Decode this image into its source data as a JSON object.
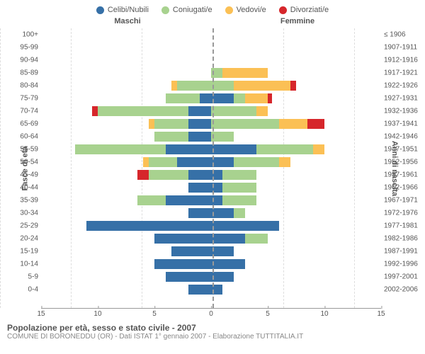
{
  "legend": [
    {
      "label": "Celibi/Nubili",
      "color": "#3670a7"
    },
    {
      "label": "Coniugati/e",
      "color": "#a8d28f"
    },
    {
      "label": "Vedovi/e",
      "color": "#fbc055"
    },
    {
      "label": "Divorziati/e",
      "color": "#d6262b"
    }
  ],
  "headers": {
    "left": "Maschi",
    "right": "Femmine"
  },
  "y_left_title": "Fasce di età",
  "y_right_title": "Anni di nascita",
  "x_max": 15,
  "x_ticks": [
    15,
    10,
    5,
    0,
    5,
    10,
    15
  ],
  "colors": {
    "celibi": "#3670a7",
    "coniugati": "#a8d28f",
    "vedovi": "#fbc055",
    "divorziati": "#d6262b",
    "grid": "#dddddd",
    "axis": "#999999",
    "text": "#555555",
    "bg": "#ffffff"
  },
  "rows": [
    {
      "age": "100+",
      "birth": "≤ 1906",
      "m": {
        "cel": 0,
        "con": 0,
        "ved": 0,
        "div": 0
      },
      "f": {
        "cel": 0,
        "con": 0,
        "ved": 0,
        "div": 0
      }
    },
    {
      "age": "95-99",
      "birth": "1907-1911",
      "m": {
        "cel": 0,
        "con": 0,
        "ved": 0,
        "div": 0
      },
      "f": {
        "cel": 0,
        "con": 0,
        "ved": 0,
        "div": 0
      }
    },
    {
      "age": "90-94",
      "birth": "1912-1916",
      "m": {
        "cel": 0,
        "con": 0,
        "ved": 0,
        "div": 0
      },
      "f": {
        "cel": 0,
        "con": 0,
        "ved": 0,
        "div": 0
      }
    },
    {
      "age": "85-89",
      "birth": "1917-1921",
      "m": {
        "cel": 0,
        "con": 0,
        "ved": 0,
        "div": 0
      },
      "f": {
        "cel": 0,
        "con": 1,
        "ved": 4,
        "div": 0
      }
    },
    {
      "age": "80-84",
      "birth": "1922-1926",
      "m": {
        "cel": 0,
        "con": 3,
        "ved": 0.5,
        "div": 0
      },
      "f": {
        "cel": 0,
        "con": 2,
        "ved": 5,
        "div": 0.5
      }
    },
    {
      "age": "75-79",
      "birth": "1927-1931",
      "m": {
        "cel": 1,
        "con": 3,
        "ved": 0,
        "div": 0
      },
      "f": {
        "cel": 2,
        "con": 1,
        "ved": 2,
        "div": 0.4
      }
    },
    {
      "age": "70-74",
      "birth": "1932-1936",
      "m": {
        "cel": 2,
        "con": 8,
        "ved": 0,
        "div": 0.5
      },
      "f": {
        "cel": 0,
        "con": 4,
        "ved": 1,
        "div": 0
      }
    },
    {
      "age": "65-69",
      "birth": "1937-1941",
      "m": {
        "cel": 2,
        "con": 3,
        "ved": 0.5,
        "div": 0
      },
      "f": {
        "cel": 0,
        "con": 6,
        "ved": 2.5,
        "div": 1.5
      }
    },
    {
      "age": "60-64",
      "birth": "1942-1946",
      "m": {
        "cel": 2,
        "con": 3,
        "ved": 0,
        "div": 0
      },
      "f": {
        "cel": 0,
        "con": 2,
        "ved": 0,
        "div": 0
      }
    },
    {
      "age": "55-59",
      "birth": "1947-1951",
      "m": {
        "cel": 4,
        "con": 8,
        "ved": 0,
        "div": 0
      },
      "f": {
        "cel": 4,
        "con": 5,
        "ved": 1,
        "div": 0
      }
    },
    {
      "age": "50-54",
      "birth": "1952-1956",
      "m": {
        "cel": 3,
        "con": 2.5,
        "ved": 0.5,
        "div": 0
      },
      "f": {
        "cel": 2,
        "con": 4,
        "ved": 1,
        "div": 0
      }
    },
    {
      "age": "45-49",
      "birth": "1957-1961",
      "m": {
        "cel": 2,
        "con": 3.5,
        "ved": 0,
        "div": 1
      },
      "f": {
        "cel": 1,
        "con": 3,
        "ved": 0,
        "div": 0
      }
    },
    {
      "age": "40-44",
      "birth": "1962-1966",
      "m": {
        "cel": 2,
        "con": 0,
        "ved": 0,
        "div": 0
      },
      "f": {
        "cel": 1,
        "con": 3,
        "ved": 0,
        "div": 0
      }
    },
    {
      "age": "35-39",
      "birth": "1967-1971",
      "m": {
        "cel": 4,
        "con": 2.5,
        "ved": 0,
        "div": 0
      },
      "f": {
        "cel": 1,
        "con": 3,
        "ved": 0,
        "div": 0
      }
    },
    {
      "age": "30-34",
      "birth": "1972-1976",
      "m": {
        "cel": 2,
        "con": 0,
        "ved": 0,
        "div": 0
      },
      "f": {
        "cel": 2,
        "con": 1,
        "ved": 0,
        "div": 0
      }
    },
    {
      "age": "25-29",
      "birth": "1977-1981",
      "m": {
        "cel": 11,
        "con": 0,
        "ved": 0,
        "div": 0
      },
      "f": {
        "cel": 6,
        "con": 0,
        "ved": 0,
        "div": 0
      }
    },
    {
      "age": "20-24",
      "birth": "1982-1986",
      "m": {
        "cel": 5,
        "con": 0,
        "ved": 0,
        "div": 0
      },
      "f": {
        "cel": 3,
        "con": 2,
        "ved": 0,
        "div": 0
      }
    },
    {
      "age": "15-19",
      "birth": "1987-1991",
      "m": {
        "cel": 3.5,
        "con": 0,
        "ved": 0,
        "div": 0
      },
      "f": {
        "cel": 2,
        "con": 0,
        "ved": 0,
        "div": 0
      }
    },
    {
      "age": "10-14",
      "birth": "1992-1996",
      "m": {
        "cel": 5,
        "con": 0,
        "ved": 0,
        "div": 0
      },
      "f": {
        "cel": 3,
        "con": 0,
        "ved": 0,
        "div": 0
      }
    },
    {
      "age": "5-9",
      "birth": "1997-2001",
      "m": {
        "cel": 4,
        "con": 0,
        "ved": 0,
        "div": 0
      },
      "f": {
        "cel": 2,
        "con": 0,
        "ved": 0,
        "div": 0
      }
    },
    {
      "age": "0-4",
      "birth": "2002-2006",
      "m": {
        "cel": 2,
        "con": 0,
        "ved": 0,
        "div": 0
      },
      "f": {
        "cel": 1,
        "con": 0,
        "ved": 0,
        "div": 0
      }
    }
  ],
  "footer": {
    "title": "Popolazione per età, sesso e stato civile - 2007",
    "subtitle": "COMUNE DI BORONEDDU (OR) - Dati ISTAT 1° gennaio 2007 - Elaborazione TUTTITALIA.IT"
  }
}
